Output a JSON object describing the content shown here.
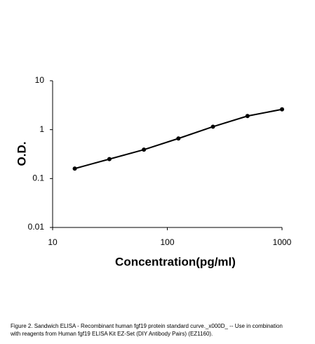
{
  "chart_data": {
    "type": "line",
    "x_label": "Concentration(pg/ml)",
    "y_label": "O.D.",
    "x": [
      15.6,
      31.25,
      62.5,
      125,
      250,
      500,
      1000
    ],
    "series": [
      {
        "color": "#000000",
        "values": [
          0.16,
          0.25,
          0.39,
          0.66,
          1.15,
          1.9,
          2.6
        ]
      }
    ],
    "xlim": [
      10,
      1000
    ],
    "xticks": [
      10,
      100,
      1000
    ],
    "ylim": [
      0.01,
      10
    ],
    "yticks": [
      0.01,
      0.1,
      1,
      10
    ],
    "x_log": true,
    "y_log": true,
    "grid": false,
    "caption": "Figure 2. Sandwich ELISA - Recombinant human fgf19 protein standard curve._x000D_ -- Use in combination with reagents from Human fgf19 ELISA Kit EZ-Set (DIY Antibody Pairs) (EZ1160)."
  }
}
